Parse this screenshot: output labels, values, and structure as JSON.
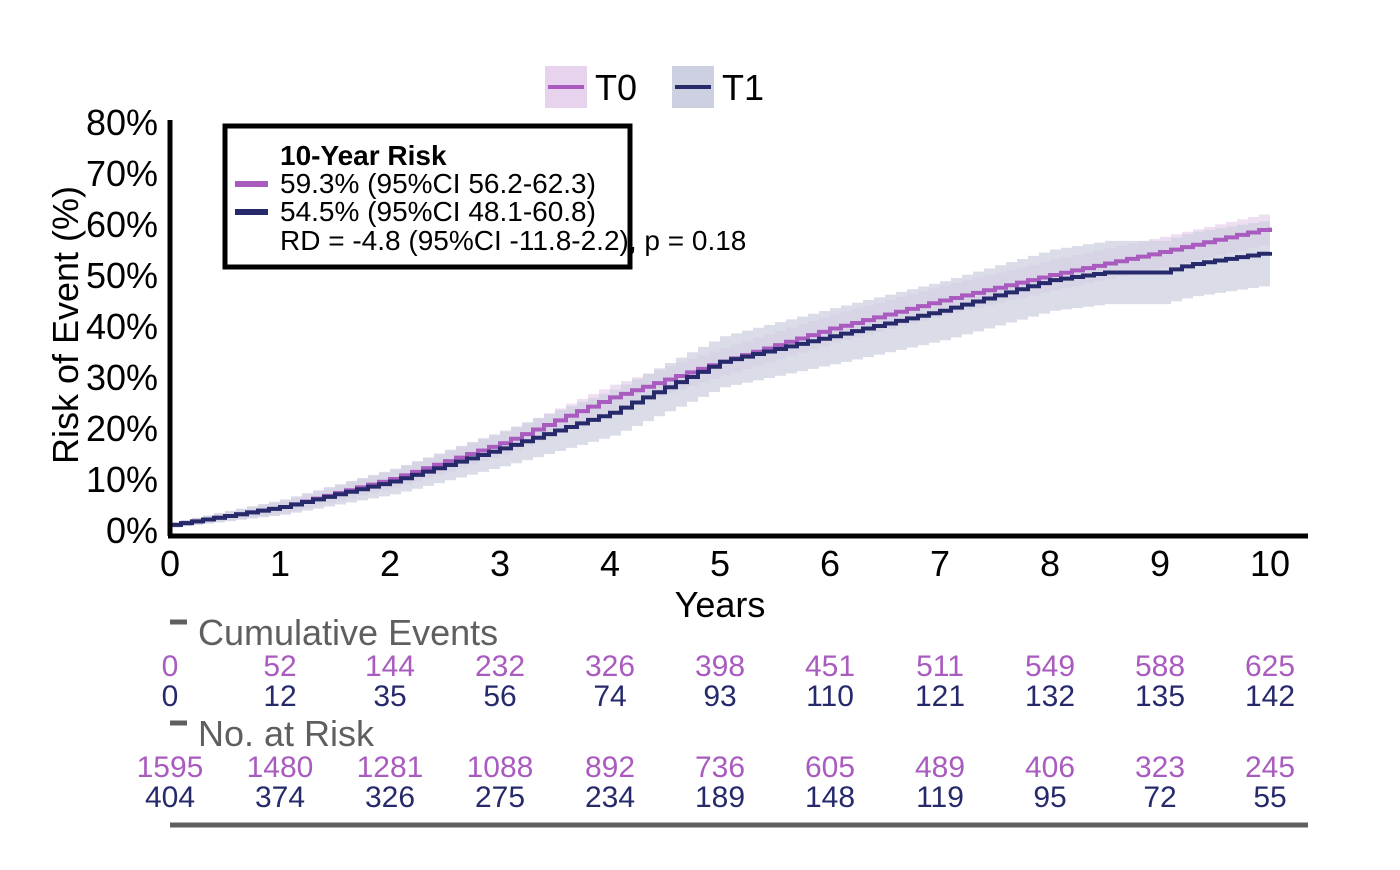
{
  "chart_data": {
    "type": "line",
    "subtype": "cumulative-incidence-step",
    "xlabel": "Years",
    "ylabel": "Risk of Event (%)",
    "xlim": [
      0,
      10
    ],
    "ylim": [
      0,
      80
    ],
    "x_ticks": [
      "0",
      "1",
      "2",
      "3",
      "4",
      "5",
      "6",
      "7",
      "8",
      "9",
      "10"
    ],
    "y_ticks": [
      "0%",
      "10%",
      "20%",
      "30%",
      "40%",
      "50%",
      "60%",
      "70%",
      "80%"
    ],
    "legend": {
      "placement": "top",
      "entries": [
        "T0",
        "T1"
      ]
    },
    "series": [
      {
        "name": "T0",
        "color": "#A95BBF",
        "band_color": "#E8D3EE",
        "x": [
          0,
          1,
          2,
          3,
          4,
          5,
          6,
          7,
          8,
          9,
          10
        ],
        "values": [
          1,
          4.5,
          10,
          17,
          26,
          33,
          39.5,
          45,
          50,
          54.5,
          59.3
        ],
        "ci_half_width": [
          0.5,
          1.2,
          1.8,
          2.2,
          2.5,
          2.7,
          2.8,
          2.9,
          3.0,
          3.0,
          3.05
        ]
      },
      {
        "name": "T1",
        "color": "#262A6B",
        "band_color": "#CDD0E0",
        "x": [
          0,
          1,
          2,
          3,
          4,
          5,
          6,
          7,
          8,
          8.5,
          9,
          9.25,
          10
        ],
        "values": [
          1,
          4.5,
          9.5,
          16,
          23,
          33,
          38,
          43,
          49,
          50.5,
          50.5,
          52,
          54.5
        ],
        "ci_half_width": [
          0.5,
          1.5,
          2.5,
          3.5,
          4.5,
          5,
          5.5,
          5.8,
          6,
          6.2,
          6.2,
          6.3,
          6.4
        ]
      }
    ],
    "annotation": {
      "title": "10-Year Risk",
      "lines": [
        "59.3% (95%CI 56.2-62.3)",
        "54.5% (95%CI 48.1-60.8)"
      ],
      "rd": "RD = -4.8 (95%CI -11.8-2.2), p = 0.18"
    },
    "tables": [
      {
        "title": "Cumulative Events",
        "rows": [
          {
            "series": "T0",
            "values": [
              "0",
              "52",
              "144",
              "232",
              "326",
              "398",
              "451",
              "511",
              "549",
              "588",
              "625"
            ]
          },
          {
            "series": "T1",
            "values": [
              "0",
              "12",
              "35",
              "56",
              "74",
              "93",
              "110",
              "121",
              "132",
              "135",
              "142"
            ]
          }
        ]
      },
      {
        "title": "No. at Risk",
        "rows": [
          {
            "series": "T0",
            "values": [
              "1595",
              "1480",
              "1281",
              "1088",
              "892",
              "736",
              "605",
              "489",
              "406",
              "323",
              "245"
            ]
          },
          {
            "series": "T1",
            "values": [
              "404",
              "374",
              "326",
              "275",
              "234",
              "189",
              "148",
              "119",
              "95",
              "72",
              "55"
            ]
          }
        ]
      }
    ]
  }
}
